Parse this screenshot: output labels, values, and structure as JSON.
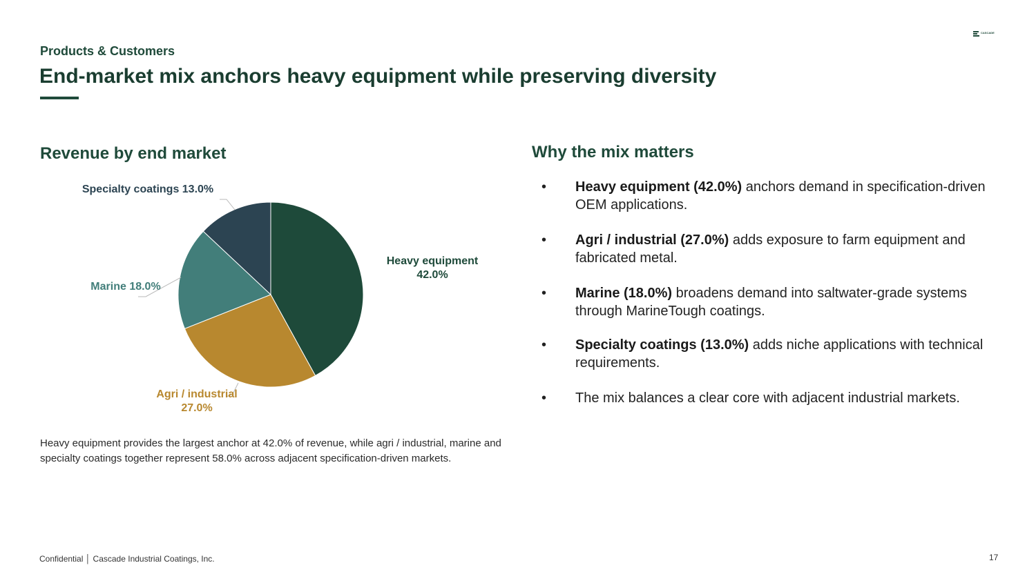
{
  "header": {
    "section": "Products & Customers",
    "title": "End-market mix anchors heavy equipment while preserving diversity",
    "logo_text": "CASCADE"
  },
  "chart_data": {
    "type": "pie",
    "title": "Revenue by end market",
    "unit": "%",
    "slices": [
      {
        "label": "Heavy equipment",
        "value": 42.0,
        "value_label": "42.0%",
        "color": "#1e4a3a"
      },
      {
        "label": "Agri / industrial",
        "value": 27.0,
        "value_label": "27.0%",
        "color": "#b8882f"
      },
      {
        "label": "Marine",
        "value": 18.0,
        "value_label": "18.0%",
        "color": "#427e7a"
      },
      {
        "label": "Specialty coatings",
        "value": 13.0,
        "value_label": "13.0%",
        "color": "#2c4452"
      }
    ]
  },
  "caption": "Heavy equipment provides the largest anchor at 42.0% of revenue, while agri / industrial, marine and specialty coatings together represent 58.0% across adjacent specification-driven markets.",
  "panel": {
    "title": "Why the mix matters",
    "bullet_symbol": "•",
    "bullets": [
      {
        "bold": "Heavy equipment (42.0%)",
        "text": " anchors demand in specification-driven OEM applications."
      },
      {
        "bold": "Agri / industrial (27.0%)",
        "text": " adds exposure to farm equipment and fabricated metal."
      },
      {
        "bold": "Marine (18.0%)",
        "text": " broadens demand into saltwater-grade systems through MarineTough coatings."
      },
      {
        "bold": "Specialty coatings (13.0%)",
        "text": " adds niche applications with technical requirements."
      },
      {
        "bold": "",
        "text": "The mix balances a clear core with adjacent industrial markets."
      }
    ]
  },
  "footer": {
    "text": "Confidential │ Cascade Industrial Coatings, Inc.",
    "page_number": "17"
  }
}
